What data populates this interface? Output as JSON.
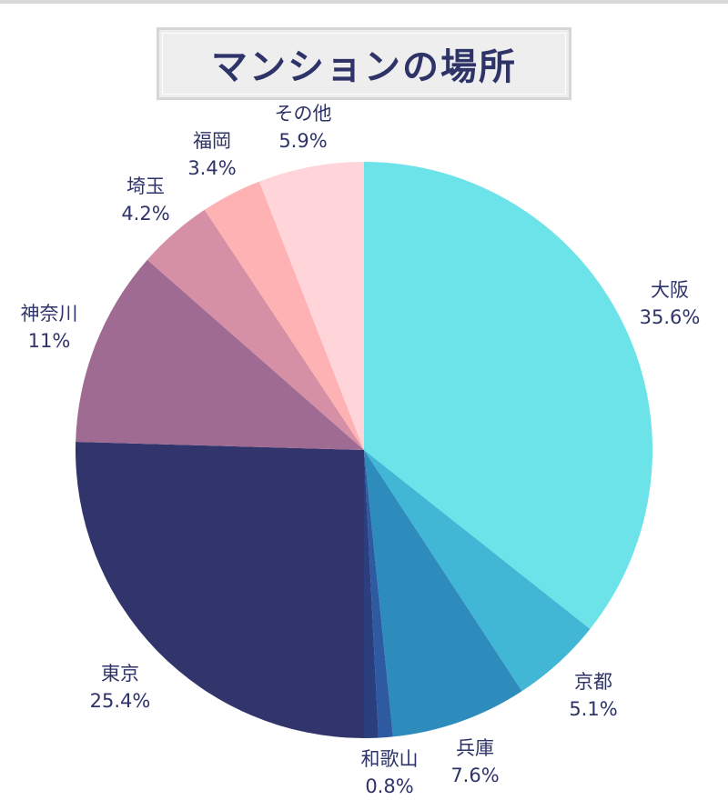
{
  "chart_data": {
    "type": "pie",
    "title": "マンションの場所",
    "slices": [
      {
        "name": "大阪",
        "value": 35.6,
        "label": "35.6%",
        "color": "#6be3e8"
      },
      {
        "name": "京都",
        "value": 5.1,
        "label": "5.1%",
        "color": "#41b6d5"
      },
      {
        "name": "兵庫",
        "value": 7.6,
        "label": "7.6%",
        "color": "#2e8cbc"
      },
      {
        "name": "和歌山",
        "value": 0.8,
        "label": "0.8%",
        "color": "#2d5aa0"
      },
      {
        "name": "",
        "value": 0.8,
        "label": "",
        "color": "#2b3f7e"
      },
      {
        "name": "東京",
        "value": 25.4,
        "label": "25.4%",
        "color": "#32356c"
      },
      {
        "name": "神奈川",
        "value": 11,
        "label": "11%",
        "color": "#a06b93"
      },
      {
        "name": "埼玉",
        "value": 4.2,
        "label": "4.2%",
        "color": "#d690a6"
      },
      {
        "name": "福岡",
        "value": 3.4,
        "label": "3.4%",
        "color": "#ffb2b4"
      },
      {
        "name": "その他",
        "value": 5.9,
        "label": "5.9%",
        "color": "#ffd5da"
      }
    ]
  }
}
